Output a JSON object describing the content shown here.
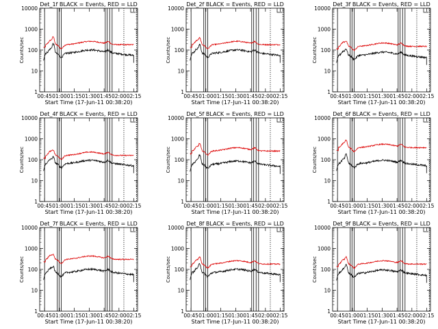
{
  "chart_data": [
    {
      "type": "line",
      "title": "Det_1f BLACK = Events, RED = LLD",
      "ylabel": "Counts/sec",
      "xlabel": "Start Time (17-Jun-11 00:38:20)",
      "yscale": "log",
      "ylim": [
        1,
        10000
      ],
      "xlim": [
        0,
        100
      ],
      "x_tick_labels": [
        "00:45",
        "01:00",
        "01:15",
        "01:30",
        "01:45",
        "02:00",
        "02:15"
      ],
      "y_tick_labels": [
        "1",
        "10",
        "100",
        "1000",
        "10000"
      ],
      "red_base": 180,
      "black_base": 70,
      "peak": 2.5,
      "series": [
        {
          "name": "BLACK",
          "label": "Events",
          "color": "#000000"
        },
        {
          "name": "RED",
          "label": "LLD",
          "color": "#dd0000"
        }
      ]
    },
    {
      "type": "line",
      "title": "Det_2f BLACK = Events, RED = LLD",
      "ylabel": "Counts/sec",
      "xlabel": "Start Time (17-Jun-11 00:38:20)",
      "yscale": "log",
      "ylim": [
        1,
        10000
      ],
      "xlim": [
        0,
        100
      ],
      "x_tick_labels": [
        "00:45",
        "01:00",
        "01:15",
        "01:30",
        "01:45",
        "02:00",
        "02:15"
      ],
      "y_tick_labels": [
        "1",
        "10",
        "100",
        "1000",
        "10000"
      ],
      "red_base": 180,
      "black_base": 70,
      "peak": 2.2,
      "series": [
        {
          "name": "BLACK",
          "label": "Events",
          "color": "#000000"
        },
        {
          "name": "RED",
          "label": "LLD",
          "color": "#dd0000"
        }
      ]
    },
    {
      "type": "line",
      "title": "Det_3f BLACK = Events, RED = LLD",
      "ylabel": "Counts/sec",
      "xlabel": "Start Time (17-Jun-11 00:38:20)",
      "yscale": "log",
      "ylim": [
        1,
        10000
      ],
      "xlim": [
        0,
        100
      ],
      "x_tick_labels": [
        "00:45",
        "01:00",
        "01:15",
        "01:30",
        "01:45",
        "02:00",
        "02:15"
      ],
      "y_tick_labels": [
        "1",
        "10",
        "100",
        "1000",
        "10000"
      ],
      "red_base": 150,
      "black_base": 55,
      "peak": 1.8,
      "series": [
        {
          "name": "BLACK",
          "label": "Events",
          "color": "#000000"
        },
        {
          "name": "RED",
          "label": "LLD",
          "color": "#dd0000"
        }
      ]
    },
    {
      "type": "line",
      "title": "Det_4f BLACK = Events, RED = LLD",
      "ylabel": "Counts/sec",
      "xlabel": "Start Time (17-Jun-11 00:38:20)",
      "yscale": "log",
      "ylim": [
        1,
        10000
      ],
      "xlim": [
        0,
        100
      ],
      "x_tick_labels": [
        "00:45",
        "01:00",
        "01:15",
        "01:30",
        "01:45",
        "02:00",
        "02:15"
      ],
      "y_tick_labels": [
        "1",
        "10",
        "100",
        "1000",
        "10000"
      ],
      "red_base": 160,
      "black_base": 65,
      "peak": 1.8,
      "series": [
        {
          "name": "BLACK",
          "label": "Events",
          "color": "#000000"
        },
        {
          "name": "RED",
          "label": "LLD",
          "color": "#dd0000"
        }
      ]
    },
    {
      "type": "line",
      "title": "Det_5f BLACK = Events, RED = LLD",
      "ylabel": "Counts/sec",
      "xlabel": "Start Time (17-Jun-11 00:38:20)",
      "yscale": "log",
      "ylim": [
        1,
        10000
      ],
      "xlim": [
        0,
        100
      ],
      "x_tick_labels": [
        "00:45",
        "01:00",
        "01:15",
        "01:30",
        "01:45",
        "02:00",
        "02:15"
      ],
      "y_tick_labels": [
        "1",
        "10",
        "100",
        "1000",
        "10000"
      ],
      "red_base": 260,
      "black_base": 60,
      "peak": 2.4,
      "series": [
        {
          "name": "BLACK",
          "label": "Events",
          "color": "#000000"
        },
        {
          "name": "RED",
          "label": "LLD",
          "color": "#dd0000"
        }
      ]
    },
    {
      "type": "line",
      "title": "Det_6f BLACK = Events, RED = LLD",
      "ylabel": "Counts/sec",
      "xlabel": "Start Time (17-Jun-11 00:38:20)",
      "yscale": "log",
      "ylim": [
        1,
        10000
      ],
      "xlim": [
        0,
        100
      ],
      "x_tick_labels": [
        "00:45",
        "01:00",
        "01:15",
        "01:30",
        "01:45",
        "02:00",
        "02:15"
      ],
      "y_tick_labels": [
        "1",
        "10",
        "100",
        "1000",
        "10000"
      ],
      "red_base": 380,
      "black_base": 65,
      "peak": 2.4,
      "series": [
        {
          "name": "BLACK",
          "label": "Events",
          "color": "#000000"
        },
        {
          "name": "RED",
          "label": "LLD",
          "color": "#dd0000"
        }
      ]
    },
    {
      "type": "line",
      "title": "Det_7f BLACK = Events, RED = LLD",
      "ylabel": "Counts/sec",
      "xlabel": "Start Time (17-Jun-11 00:38:20)",
      "yscale": "log",
      "ylim": [
        1,
        10000
      ],
      "xlim": [
        0,
        100
      ],
      "x_tick_labels": [
        "00:45",
        "01:00",
        "01:15",
        "01:30",
        "01:45",
        "02:00",
        "02:15"
      ],
      "y_tick_labels": [
        "1",
        "10",
        "100",
        "1000",
        "10000"
      ],
      "red_base": 300,
      "black_base": 70,
      "peak": 1.7,
      "series": [
        {
          "name": "BLACK",
          "label": "Events",
          "color": "#000000"
        },
        {
          "name": "RED",
          "label": "LLD",
          "color": "#dd0000"
        }
      ]
    },
    {
      "type": "line",
      "title": "Det_8f BLACK = Events, RED = LLD",
      "ylabel": "Counts/sec",
      "xlabel": "Start Time (17-Jun-11 00:38:20)",
      "yscale": "log",
      "ylim": [
        1,
        10000
      ],
      "xlim": [
        0,
        100
      ],
      "x_tick_labels": [
        "00:45",
        "01:00",
        "01:15",
        "01:30",
        "01:45",
        "02:00",
        "02:15"
      ],
      "y_tick_labels": [
        "1",
        "10",
        "100",
        "1000",
        "10000"
      ],
      "red_base": 180,
      "black_base": 70,
      "peak": 2.3,
      "series": [
        {
          "name": "BLACK",
          "label": "Events",
          "color": "#000000"
        },
        {
          "name": "RED",
          "label": "LLD",
          "color": "#dd0000"
        }
      ]
    },
    {
      "type": "line",
      "title": "Det_9f BLACK = Events, RED = LLD",
      "ylabel": "Counts/sec",
      "xlabel": "Start Time (17-Jun-11 00:38:20)",
      "yscale": "log",
      "ylim": [
        1,
        10000
      ],
      "xlim": [
        0,
        100
      ],
      "x_tick_labels": [
        "00:45",
        "01:00",
        "01:15",
        "01:30",
        "01:45",
        "02:00",
        "02:15"
      ],
      "y_tick_labels": [
        "1",
        "10",
        "100",
        "1000",
        "10000"
      ],
      "red_base": 180,
      "black_base": 65,
      "peak": 2.3,
      "series": [
        {
          "name": "BLACK",
          "label": "Events",
          "color": "#000000"
        },
        {
          "name": "RED",
          "label": "LLD",
          "color": "#dd0000"
        }
      ]
    }
  ],
  "shared": {
    "vertical_solid_x": [
      5,
      18,
      19.8,
      22,
      67,
      69,
      71.5,
      74
    ],
    "vertical_dotted_x": [
      86,
      99
    ]
  }
}
